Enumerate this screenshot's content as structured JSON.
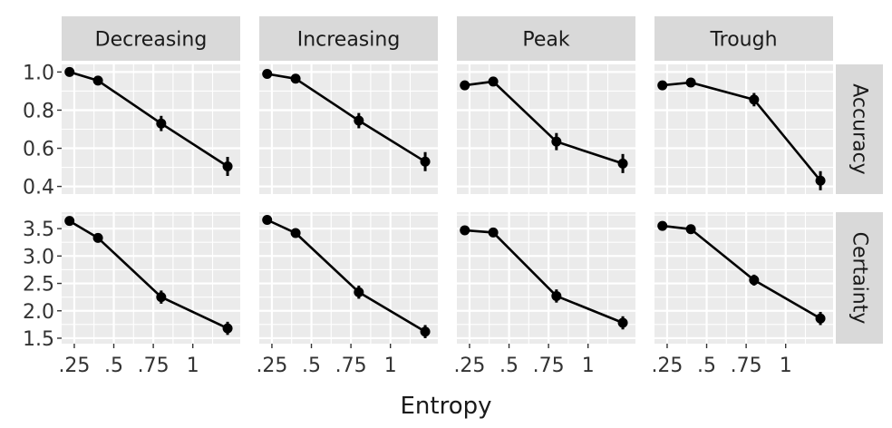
{
  "chart_data": {
    "type": "line",
    "xlabel": "Entropy",
    "ylabel": "",
    "x_ticks": [
      0.25,
      0.5,
      0.75,
      1
    ],
    "x_tick_labels": [
      ".25",
      ".5",
      ".75",
      "1"
    ],
    "xlim": [
      0.17,
      1.3
    ],
    "x": [
      0.22,
      0.4,
      0.8,
      1.22
    ],
    "columns": [
      "Decreasing",
      "Increasing",
      "Peak",
      "Trough"
    ],
    "rows": [
      {
        "name": "Accuracy",
        "ylim": [
          0.36,
          1.04
        ],
        "y_ticks": [
          0.4,
          0.6,
          0.8,
          1.0
        ],
        "y_tick_labels": [
          "0.4",
          "0.6",
          "0.8",
          "1.0"
        ],
        "series": {
          "Decreasing": {
            "values": [
              1.0,
              0.955,
              0.73,
              0.505
            ],
            "errors": [
              0.01,
              0.015,
              0.04,
              0.05
            ]
          },
          "Increasing": {
            "values": [
              0.99,
              0.965,
              0.745,
              0.53
            ],
            "errors": [
              0.01,
              0.015,
              0.04,
              0.05
            ]
          },
          "Peak": {
            "values": [
              0.93,
              0.95,
              0.635,
              0.52
            ],
            "errors": [
              0.025,
              0.02,
              0.045,
              0.05
            ]
          },
          "Trough": {
            "values": [
              0.93,
              0.945,
              0.855,
              0.43
            ],
            "errors": [
              0.02,
              0.02,
              0.035,
              0.05
            ]
          }
        }
      },
      {
        "name": "Certainty",
        "ylim": [
          1.4,
          3.8
        ],
        "y_ticks": [
          1.5,
          2.0,
          2.5,
          3.0,
          3.5
        ],
        "y_tick_labels": [
          "1.5",
          "2.0",
          "2.5",
          "3.0",
          "3.5"
        ],
        "series": {
          "Decreasing": {
            "values": [
              3.64,
              3.33,
              2.25,
              1.68
            ],
            "errors": [
              0.05,
              0.07,
              0.12,
              0.12
            ]
          },
          "Increasing": {
            "values": [
              3.66,
              3.42,
              2.34,
              1.62
            ],
            "errors": [
              0.05,
              0.07,
              0.12,
              0.12
            ]
          },
          "Peak": {
            "values": [
              3.47,
              3.43,
              2.27,
              1.78
            ],
            "errors": [
              0.05,
              0.05,
              0.12,
              0.12
            ]
          },
          "Trough": {
            "values": [
              3.55,
              3.49,
              2.56,
              1.86
            ],
            "errors": [
              0.05,
              0.05,
              0.1,
              0.12
            ]
          }
        }
      }
    ],
    "grid": true,
    "legend": "none"
  }
}
